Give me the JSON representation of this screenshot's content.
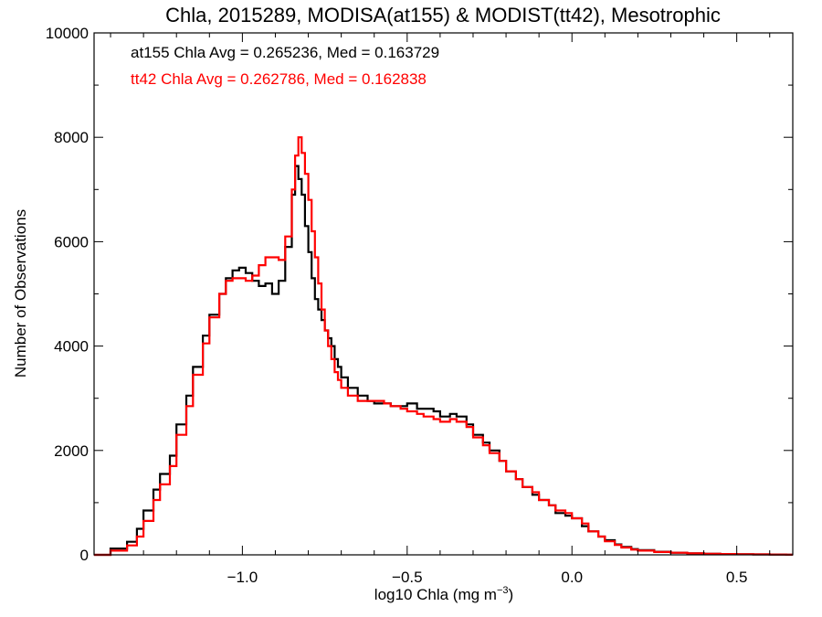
{
  "chart_data": {
    "type": "line",
    "title": "Chla, 2015289, MODISA(at155) & MODIST(tt42), Mesotrophic",
    "xlabel_main": "log10 Chla (mg m",
    "xlabel_sup": "−3",
    "xlabel_close": ")",
    "ylabel": "Number of Observations",
    "xlim": [
      -1.45,
      0.67
    ],
    "ylim": [
      0,
      10000
    ],
    "x_ticks": [
      -1.0,
      -0.5,
      0.0,
      0.5
    ],
    "x_tick_labels": [
      "−1.0",
      "−0.5",
      "0.0",
      "0.5"
    ],
    "y_ticks": [
      0,
      2000,
      4000,
      6000,
      8000,
      10000
    ],
    "y_tick_labels": [
      "0",
      "2000",
      "4000",
      "6000",
      "8000",
      "10000"
    ],
    "step": "histogram",
    "annotations": [
      {
        "text": "at155 Chla Avg = 0.265236, Med = 0.163729",
        "color": "#000000"
      },
      {
        "text": "tt42 Chla Avg = 0.262786, Med = 0.162838",
        "color": "#ff0000"
      }
    ],
    "series": [
      {
        "color": "#000000",
        "x": [
          -1.45,
          -1.4,
          -1.35,
          -1.32,
          -1.3,
          -1.27,
          -1.25,
          -1.22,
          -1.2,
          -1.17,
          -1.15,
          -1.12,
          -1.1,
          -1.07,
          -1.05,
          -1.03,
          -1.01,
          -0.99,
          -0.97,
          -0.95,
          -0.93,
          -0.91,
          -0.89,
          -0.87,
          -0.85,
          -0.84,
          -0.83,
          -0.82,
          -0.81,
          -0.8,
          -0.79,
          -0.78,
          -0.77,
          -0.76,
          -0.75,
          -0.74,
          -0.73,
          -0.72,
          -0.71,
          -0.7,
          -0.68,
          -0.65,
          -0.62,
          -0.6,
          -0.57,
          -0.55,
          -0.52,
          -0.5,
          -0.47,
          -0.45,
          -0.42,
          -0.4,
          -0.37,
          -0.35,
          -0.32,
          -0.3,
          -0.27,
          -0.25,
          -0.22,
          -0.2,
          -0.17,
          -0.15,
          -0.12,
          -0.1,
          -0.07,
          -0.05,
          -0.02,
          0.0,
          0.03,
          0.05,
          0.08,
          0.1,
          0.13,
          0.15,
          0.18,
          0.2,
          0.25,
          0.3,
          0.35,
          0.4,
          0.45,
          0.5,
          0.55,
          0.6,
          0.65
        ],
        "y": [
          0,
          120,
          250,
          500,
          850,
          1250,
          1550,
          1900,
          2500,
          3050,
          3600,
          4200,
          4600,
          5000,
          5300,
          5450,
          5500,
          5400,
          5250,
          5150,
          5200,
          5000,
          5250,
          5900,
          6900,
          7450,
          7200,
          6900,
          6300,
          5800,
          5300,
          4900,
          4700,
          4500,
          4300,
          4150,
          4000,
          3750,
          3600,
          3400,
          3200,
          3050,
          2950,
          2900,
          2900,
          2850,
          2850,
          2900,
          2800,
          2800,
          2750,
          2650,
          2700,
          2650,
          2500,
          2300,
          2150,
          2000,
          1800,
          1600,
          1450,
          1300,
          1150,
          1050,
          950,
          800,
          750,
          700,
          550,
          450,
          350,
          280,
          200,
          150,
          110,
          90,
          60,
          40,
          30,
          20,
          15,
          10,
          8,
          5,
          3
        ]
      },
      {
        "color": "#ff0000",
        "x": [
          -1.45,
          -1.4,
          -1.35,
          -1.32,
          -1.3,
          -1.27,
          -1.25,
          -1.22,
          -1.2,
          -1.17,
          -1.15,
          -1.12,
          -1.1,
          -1.07,
          -1.05,
          -1.03,
          -1.01,
          -0.99,
          -0.97,
          -0.95,
          -0.93,
          -0.91,
          -0.89,
          -0.87,
          -0.85,
          -0.84,
          -0.83,
          -0.82,
          -0.81,
          -0.8,
          -0.79,
          -0.78,
          -0.77,
          -0.76,
          -0.75,
          -0.74,
          -0.73,
          -0.72,
          -0.71,
          -0.7,
          -0.68,
          -0.65,
          -0.62,
          -0.6,
          -0.57,
          -0.55,
          -0.52,
          -0.5,
          -0.47,
          -0.45,
          -0.42,
          -0.4,
          -0.37,
          -0.35,
          -0.32,
          -0.3,
          -0.27,
          -0.25,
          -0.22,
          -0.2,
          -0.17,
          -0.15,
          -0.12,
          -0.1,
          -0.07,
          -0.05,
          -0.02,
          0.0,
          0.03,
          0.05,
          0.08,
          0.1,
          0.13,
          0.15,
          0.18,
          0.2,
          0.25,
          0.3,
          0.35,
          0.4,
          0.45,
          0.5,
          0.55,
          0.6,
          0.65
        ],
        "y": [
          0,
          80,
          180,
          350,
          650,
          1050,
          1350,
          1700,
          2300,
          2850,
          3450,
          4050,
          4550,
          5000,
          5250,
          5300,
          5300,
          5250,
          5350,
          5550,
          5700,
          5700,
          5650,
          6100,
          7000,
          7650,
          8000,
          7700,
          7300,
          6800,
          6200,
          5700,
          5200,
          4700,
          4300,
          4000,
          3750,
          3500,
          3350,
          3200,
          3050,
          2950,
          2950,
          2950,
          2900,
          2850,
          2800,
          2750,
          2700,
          2650,
          2600,
          2550,
          2600,
          2550,
          2450,
          2250,
          2100,
          1950,
          1800,
          1600,
          1450,
          1300,
          1200,
          1050,
          950,
          850,
          800,
          700,
          600,
          450,
          350,
          260,
          190,
          140,
          100,
          80,
          55,
          40,
          30,
          20,
          15,
          10,
          8,
          5,
          3
        ]
      }
    ]
  }
}
